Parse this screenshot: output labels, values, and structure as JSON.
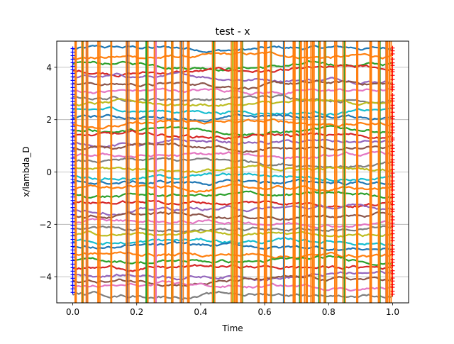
{
  "chart_data": {
    "type": "line",
    "title": "test - x",
    "xlabel": "Time",
    "ylabel": "x/lambda_D",
    "xlim": [
      -0.05,
      1.05
    ],
    "ylim": [
      -5,
      5
    ],
    "xticks": [
      0.0,
      0.2,
      0.4,
      0.6,
      0.8,
      1.0
    ],
    "xtick_labels": [
      "0.0",
      "0.2",
      "0.4",
      "0.6",
      "0.8",
      "1.0"
    ],
    "yticks": [
      -4,
      -2,
      0,
      2,
      4
    ],
    "ytick_labels": [
      "−4",
      "−2",
      "0",
      "2",
      "4"
    ],
    "grid": "horizontal",
    "legend": "none",
    "series_note": "many particle trajectories; start markers blue '+' at t=0, end markers red '+' at t=1",
    "colors": [
      "#1f77b4",
      "#ff7f0e",
      "#2ca02c",
      "#d62728",
      "#9467bd",
      "#8c564b",
      "#e377c2",
      "#7f7f7f",
      "#bcbd22",
      "#17becf"
    ],
    "start_marker_color": "#0000ff",
    "end_marker_color": "#ff0000",
    "trajectory_baselines": [
      4.7,
      4.4,
      4.1,
      3.85,
      3.6,
      3.35,
      3.1,
      2.85,
      2.6,
      2.35,
      2.1,
      1.85,
      1.6,
      1.35,
      1.1,
      0.85,
      0.6,
      0.35,
      0.1,
      -0.15,
      -0.4,
      -0.65,
      -0.9,
      -1.15,
      -1.4,
      -1.65,
      -1.9,
      -2.15,
      -2.4,
      -2.65,
      -2.9,
      -3.15,
      -3.4,
      -3.65,
      -3.9,
      -4.15,
      -4.4,
      -4.65
    ],
    "vertical_crossings_x": [
      0.01,
      0.03,
      0.045,
      0.08,
      0.12,
      0.17,
      0.2,
      0.23,
      0.26,
      0.29,
      0.31,
      0.34,
      0.36,
      0.44,
      0.5,
      0.51,
      0.53,
      0.58,
      0.6,
      0.62,
      0.66,
      0.69,
      0.71,
      0.73,
      0.75,
      0.77,
      0.79,
      0.82,
      0.85,
      0.89,
      0.93,
      0.96,
      0.98,
      0.99
    ]
  }
}
